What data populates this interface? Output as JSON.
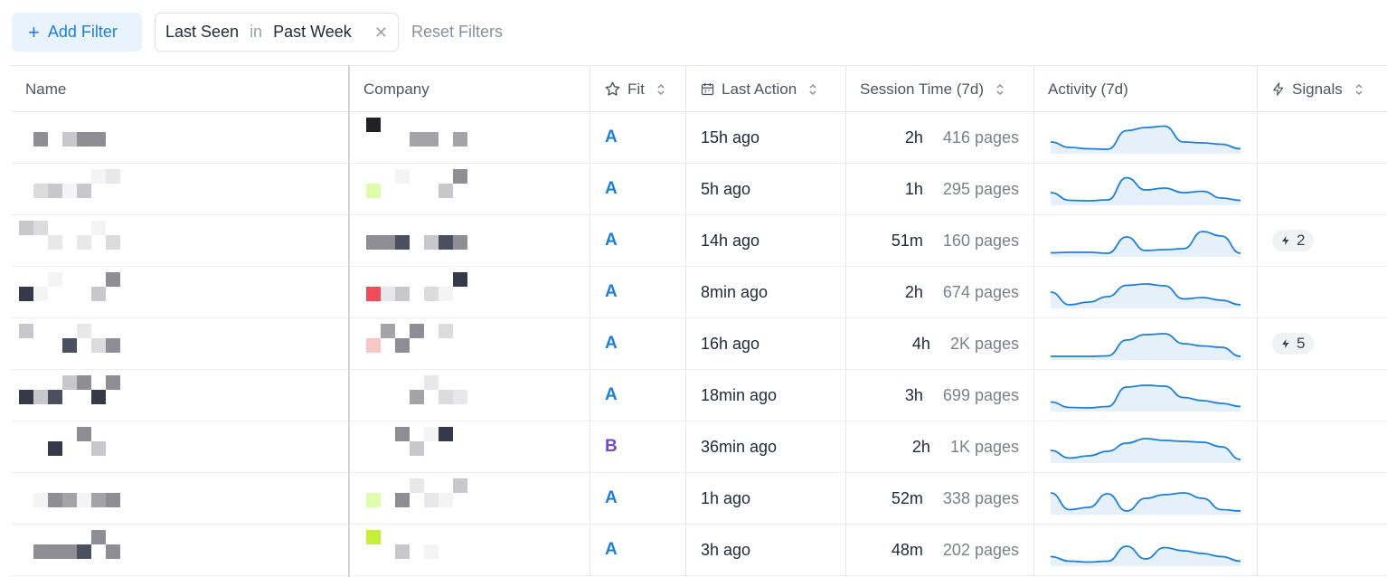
{
  "toolbar": {
    "add_filter_label": "Add Filter",
    "filter_chip": {
      "field": "Last Seen",
      "operator": "in",
      "value": "Past Week"
    },
    "reset_label": "Reset Filters"
  },
  "columns": {
    "name": "Name",
    "company": "Company",
    "fit": "Fit",
    "last_action": "Last Action",
    "session_time": "Session Time (7d)",
    "activity": "Activity (7d)",
    "signals": "Signals"
  },
  "colors": {
    "accent": "#1e7fd8",
    "fit_a": "#1e7fd8",
    "fit_b": "#6d4adb",
    "spark_line": "#1e7fd8",
    "spark_fill": "#e6f0fb"
  },
  "rows": [
    {
      "fit": "A",
      "last_action": "15h ago",
      "session_time": "2h",
      "pages": "416 pages",
      "signals": "",
      "activity": [
        20,
        8,
        5,
        4,
        45,
        52,
        55,
        20,
        18,
        15,
        5
      ]
    },
    {
      "fit": "A",
      "last_action": "5h ago",
      "session_time": "1h",
      "pages": "295 pages",
      "signals": "",
      "activity": [
        22,
        5,
        4,
        6,
        55,
        28,
        32,
        22,
        25,
        10,
        5
      ]
    },
    {
      "fit": "A",
      "last_action": "14h ago",
      "session_time": "51m",
      "pages": "160 pages",
      "signals": "2",
      "activity": [
        3,
        4,
        4,
        2,
        38,
        8,
        10,
        12,
        50,
        40,
        2
      ]
    },
    {
      "fit": "A",
      "last_action": "8min ago",
      "session_time": "2h",
      "pages": "674 pages",
      "signals": "",
      "activity": [
        30,
        2,
        8,
        20,
        45,
        48,
        44,
        15,
        18,
        12,
        2
      ]
    },
    {
      "fit": "A",
      "last_action": "16h ago",
      "session_time": "4h",
      "pages": "2K pages",
      "signals": "5",
      "activity": [
        2,
        2,
        2,
        3,
        38,
        50,
        52,
        30,
        25,
        22,
        2
      ]
    },
    {
      "fit": "A",
      "last_action": "18min ago",
      "session_time": "3h",
      "pages": "699 pages",
      "signals": "",
      "activity": [
        15,
        3,
        2,
        5,
        48,
        52,
        50,
        25,
        18,
        12,
        5
      ]
    },
    {
      "fit": "B",
      "last_action": "36min ago",
      "session_time": "2h",
      "pages": "1K pages",
      "signals": "",
      "activity": [
        22,
        5,
        10,
        20,
        38,
        48,
        44,
        42,
        40,
        30,
        2
      ]
    },
    {
      "fit": "A",
      "last_action": "1h ago",
      "session_time": "52m",
      "pages": "338 pages",
      "signals": "",
      "activity": [
        42,
        5,
        10,
        40,
        2,
        30,
        38,
        42,
        30,
        5,
        2
      ]
    },
    {
      "fit": "A",
      "last_action": "3h ago",
      "session_time": "48m",
      "pages": "202 pages",
      "signals": "",
      "activity": [
        15,
        5,
        3,
        5,
        38,
        10,
        35,
        28,
        22,
        15,
        5
      ]
    }
  ]
}
